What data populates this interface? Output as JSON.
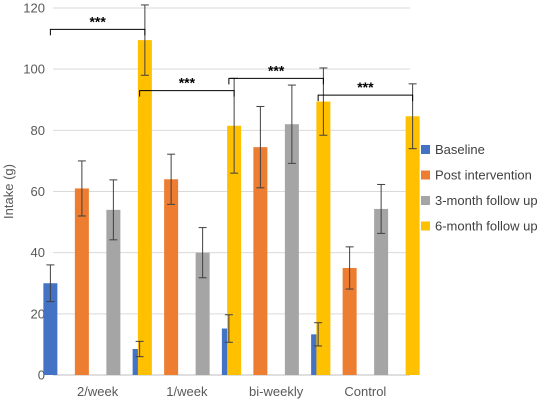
{
  "chart_data": {
    "type": "bar",
    "ylabel": "Intake (g)",
    "ylim": [
      0,
      120
    ],
    "yticks": [
      0,
      20,
      40,
      60,
      80,
      100,
      120
    ],
    "grid": true,
    "legend_position": "right",
    "categories": [
      "2/week",
      "1/week",
      "bi-weekly",
      "Control"
    ],
    "series": [
      {
        "name": "Baseline",
        "color": "#4472C4",
        "values": [
          30,
          8.5,
          15.2,
          13.3
        ],
        "errors": [
          6,
          2.5,
          4.5,
          3.8
        ]
      },
      {
        "name": "Post intervention",
        "color": "#ED7D31",
        "values": [
          61,
          64,
          74.5,
          35
        ],
        "errors": [
          9,
          8.2,
          13.3,
          6.9
        ]
      },
      {
        "name": "3-month follow up",
        "color": "#A5A5A5",
        "values": [
          54,
          40,
          82,
          54.3
        ],
        "errors": [
          9.8,
          8.2,
          12.8,
          8
        ]
      },
      {
        "name": "6-month follow up",
        "color": "#FFC000",
        "values": [
          109.5,
          81.5,
          89.4,
          84.6
        ],
        "errors": [
          11.5,
          15.5,
          11,
          10.6
        ]
      }
    ],
    "annotations": [
      {
        "category": "2/week",
        "text": "***",
        "bracket_y": 113
      },
      {
        "category": "1/week",
        "text": "***",
        "bracket_y": 93
      },
      {
        "category": "bi-weekly",
        "text": "***",
        "bracket_y": 97
      },
      {
        "category": "Control",
        "text": "***",
        "bracket_y": 91.5
      }
    ]
  }
}
